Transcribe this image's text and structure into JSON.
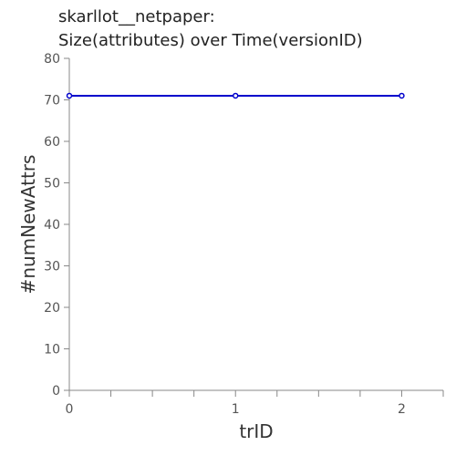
{
  "chart_data": {
    "type": "line",
    "title": "skarllot__netpaper:",
    "subtitle": "Size(attributes) over Time(versionID)",
    "xlabel": "trID",
    "ylabel": "#numNewAttrs",
    "x": [
      0,
      1,
      2
    ],
    "series": [
      {
        "values": [
          71,
          71,
          71
        ],
        "color": "#0000cc"
      }
    ],
    "xlim": [
      0,
      2.25
    ],
    "ylim": [
      0,
      80
    ],
    "x_ticks": [
      0,
      1,
      2
    ],
    "x_minor_step": 0.25,
    "y_ticks": [
      0,
      10,
      20,
      30,
      40,
      50,
      60,
      70,
      80
    ],
    "grid": false,
    "legend": "none"
  }
}
